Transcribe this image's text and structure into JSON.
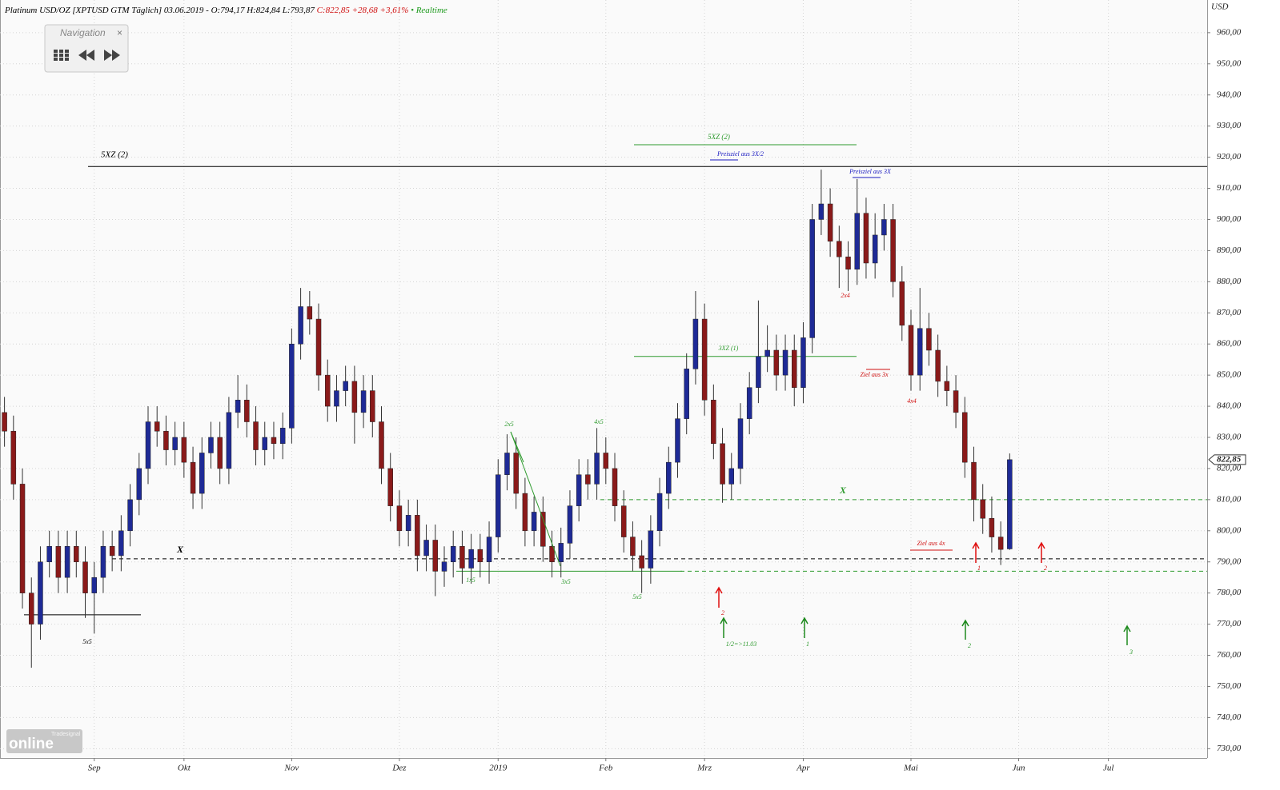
{
  "chart_data": {
    "type": "candlestick",
    "header": {
      "instrument": "Platinum USD/OZ [XPTUSD GTM Täglich] 03.06.2019 - O:794,17 H:824,84 L:793,87",
      "change": "C:822,85 +28,68 +3,61%",
      "status": "• Realtime"
    },
    "y_unit": "USD",
    "up_color": "#1e2a96",
    "down_color": "#8a1a1a",
    "grid": true,
    "ylim": [
      727,
      970.5
    ],
    "yticks": [
      {
        "value": 730,
        "label": "730,00"
      },
      {
        "value": 740,
        "label": "740,00"
      },
      {
        "value": 750,
        "label": "750,00"
      },
      {
        "value": 760,
        "label": "760,00"
      },
      {
        "value": 770,
        "label": "770,00"
      },
      {
        "value": 780,
        "label": "780,00"
      },
      {
        "value": 790,
        "label": "790,00"
      },
      {
        "value": 800,
        "label": "800,00"
      },
      {
        "value": 810,
        "label": "810,00"
      },
      {
        "value": 820,
        "label": "820,00"
      },
      {
        "value": 830,
        "label": "830,00"
      },
      {
        "value": 840,
        "label": "840,00"
      },
      {
        "value": 850,
        "label": "850,00"
      },
      {
        "value": 860,
        "label": "860,00"
      },
      {
        "value": 870,
        "label": "870,00"
      },
      {
        "value": 880,
        "label": "880,00"
      },
      {
        "value": 890,
        "label": "890,00"
      },
      {
        "value": 900,
        "label": "900,00"
      },
      {
        "value": 910,
        "label": "910,00"
      },
      {
        "value": 920,
        "label": "920,00"
      },
      {
        "value": 930,
        "label": "930,00"
      },
      {
        "value": 940,
        "label": "940,00"
      },
      {
        "value": 950,
        "label": "950,00"
      },
      {
        "value": 960,
        "label": "960,00"
      }
    ],
    "xlim": [
      -0.5,
      134
    ],
    "xticks": [
      {
        "value": 10,
        "label": "Sep"
      },
      {
        "value": 20,
        "label": "Okt"
      },
      {
        "value": 32,
        "label": "Nov"
      },
      {
        "value": 44,
        "label": "Dez"
      },
      {
        "value": 55,
        "label": "2019"
      },
      {
        "value": 67,
        "label": "Feb"
      },
      {
        "value": 78,
        "label": "Mrz"
      },
      {
        "value": 89,
        "label": "Apr"
      },
      {
        "value": 101,
        "label": "Mai"
      },
      {
        "value": 113,
        "label": "Jun"
      },
      {
        "value": 123,
        "label": "Jul"
      }
    ],
    "open": [
      838,
      832,
      815,
      780,
      770,
      790,
      795,
      785,
      795,
      790,
      780,
      785,
      795,
      792,
      800,
      810,
      820,
      835,
      832,
      826,
      830,
      822,
      812,
      825,
      830,
      820,
      838,
      842,
      835,
      826,
      830,
      828,
      833,
      860,
      872,
      868,
      850,
      840,
      845,
      848,
      838,
      845,
      835,
      820,
      808,
      800,
      805,
      792,
      797,
      787,
      790,
      795,
      788,
      794,
      790,
      798,
      818,
      825,
      812,
      800,
      806,
      795,
      790,
      796,
      808,
      818,
      815,
      825,
      820,
      808,
      798,
      792,
      788,
      800,
      812,
      822,
      836,
      852,
      868,
      842,
      828,
      815,
      820,
      836,
      846,
      856,
      858,
      850,
      858,
      846,
      862,
      900,
      905,
      893,
      888,
      884,
      902,
      886,
      895,
      900,
      880,
      866,
      850,
      865,
      858,
      848,
      845,
      838,
      822,
      810,
      804,
      798,
      794.17
    ],
    "high": [
      843,
      837,
      820,
      785,
      795,
      800,
      800,
      800,
      800,
      795,
      790,
      800,
      800,
      805,
      815,
      825,
      840,
      840,
      837,
      835,
      835,
      827,
      830,
      835,
      835,
      843,
      850,
      847,
      840,
      835,
      835,
      838,
      865,
      878,
      877,
      873,
      855,
      850,
      853,
      853,
      850,
      850,
      840,
      825,
      813,
      810,
      810,
      802,
      802,
      795,
      800,
      800,
      799,
      799,
      803,
      823,
      831,
      830,
      817,
      811,
      811,
      800,
      801,
      813,
      823,
      823,
      833,
      830,
      825,
      813,
      803,
      797,
      805,
      817,
      827,
      841,
      857,
      877,
      873,
      847,
      833,
      825,
      841,
      851,
      874,
      866,
      863,
      863,
      863,
      867,
      905,
      916,
      910,
      898,
      893,
      913,
      907,
      902,
      905,
      905,
      885,
      871,
      878,
      870,
      863,
      853,
      850,
      843,
      827,
      815,
      811,
      803,
      824.84
    ],
    "low": [
      827,
      810,
      775,
      756,
      765,
      785,
      780,
      780,
      785,
      772,
      767,
      780,
      787,
      787,
      795,
      805,
      815,
      827,
      821,
      821,
      817,
      807,
      807,
      820,
      815,
      815,
      833,
      830,
      821,
      821,
      823,
      823,
      828,
      855,
      863,
      845,
      835,
      835,
      840,
      828,
      833,
      830,
      815,
      803,
      795,
      795,
      787,
      787,
      779,
      782,
      785,
      783,
      783,
      785,
      783,
      793,
      813,
      807,
      795,
      795,
      790,
      785,
      785,
      791,
      803,
      810,
      810,
      815,
      803,
      793,
      787,
      780,
      783,
      795,
      807,
      817,
      831,
      847,
      837,
      823,
      809,
      810,
      815,
      831,
      841,
      851,
      845,
      845,
      840,
      841,
      857,
      895,
      888,
      878,
      877,
      879,
      881,
      881,
      890,
      875,
      861,
      845,
      845,
      853,
      843,
      840,
      833,
      817,
      803,
      799,
      793,
      789,
      793.87
    ],
    "close": [
      832,
      815,
      780,
      770,
      790,
      795,
      785,
      795,
      790,
      780,
      785,
      795,
      792,
      800,
      810,
      820,
      835,
      832,
      826,
      830,
      822,
      812,
      825,
      830,
      820,
      838,
      842,
      835,
      826,
      830,
      828,
      833,
      860,
      872,
      868,
      850,
      840,
      845,
      848,
      838,
      845,
      835,
      820,
      808,
      800,
      805,
      792,
      797,
      787,
      790,
      795,
      788,
      794,
      790,
      798,
      818,
      825,
      812,
      800,
      806,
      795,
      790,
      796,
      808,
      818,
      815,
      825,
      820,
      808,
      798,
      792,
      788,
      800,
      812,
      822,
      836,
      852,
      868,
      842,
      828,
      815,
      820,
      836,
      846,
      856,
      858,
      850,
      858,
      846,
      862,
      900,
      905,
      893,
      888,
      884,
      902,
      886,
      895,
      900,
      880,
      866,
      850,
      865,
      858,
      848,
      845,
      838,
      822,
      810,
      804,
      798,
      794,
      822.85
    ],
    "last_price": {
      "value": 822.85,
      "label": "822,85"
    },
    "levels": [
      {
        "value": 917,
        "color": "#000000",
        "dash": false
      },
      {
        "value": 924,
        "color": "#2e9a2e",
        "dash": false
      },
      {
        "value": 856,
        "color": "#2e9a2e",
        "dash": false
      },
      {
        "value": 810,
        "color": "#2e9a2e",
        "dash": true
      },
      {
        "value": 791,
        "color": "#000000",
        "dash": true
      },
      {
        "value": 787,
        "color": "#2e9a2e",
        "dash": true
      },
      {
        "value": 773,
        "color": "#000000",
        "dash": false
      },
      {
        "value": 787,
        "color": "#2e9a2e",
        "dash": false
      }
    ],
    "annotations": [
      {
        "text": "5XZ (2)",
        "color": "#000000"
      },
      {
        "text": "5XZ (2)",
        "color": "#2e9a2e"
      },
      {
        "text": "Preisziel aus 3X/2",
        "color": "#1a1ac0"
      },
      {
        "text": "Preisziel aus 3X",
        "color": "#1a1ac0"
      },
      {
        "text": "3XZ (1)",
        "color": "#2e9a2e"
      },
      {
        "text": "2x4",
        "color": "#d01010"
      },
      {
        "text": "Ziel aus 3x",
        "color": "#d01010"
      },
      {
        "text": "4x4",
        "color": "#d01010"
      },
      {
        "text": "X",
        "color": "#2e9a2e"
      },
      {
        "text": "X",
        "color": "#000000"
      },
      {
        "text": "Ziel aus 4x",
        "color": "#d01010"
      },
      {
        "text": "2x5",
        "color": "#2e9a2e"
      },
      {
        "text": "4x5",
        "color": "#2e9a2e"
      },
      {
        "text": "1x5",
        "color": "#2e9a2e"
      },
      {
        "text": "3x5",
        "color": "#2e9a2e"
      },
      {
        "text": "5x5",
        "color": "#2e9a2e"
      },
      {
        "text": "5x5",
        "color": "#000000"
      },
      {
        "text": "2",
        "color": "#d01010"
      },
      {
        "text": "1/2=>11.03",
        "color": "#2e9a2e"
      },
      {
        "text": "1",
        "color": "#2e9a2e"
      },
      {
        "text": "1",
        "color": "#d01010"
      },
      {
        "text": "2",
        "color": "#d01010"
      },
      {
        "text": "2",
        "color": "#2e9a2e"
      },
      {
        "text": "3",
        "color": "#2e9a2e"
      }
    ],
    "navigation": {
      "title": "Navigation",
      "close": "×"
    },
    "logo": {
      "brand": "Tradesignal",
      "name": "online"
    }
  }
}
